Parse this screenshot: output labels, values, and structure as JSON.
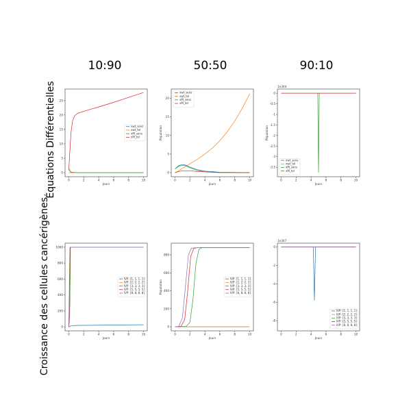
{
  "column_titles": [
    "10:90",
    "50:50",
    "90:10"
  ],
  "row_titles": [
    "Équations Différentielles",
    "Croissance des cellules cancérigènes"
  ],
  "colors": {
    "blue": "#1f77b4",
    "orange": "#ff7f0e",
    "green": "#2ca02c",
    "red": "#d62728",
    "purple": "#9467bd"
  },
  "chart_data": [
    {
      "type": "line",
      "xlabel": "Jours",
      "ylabel": "",
      "xlim": [
        -0.5,
        10.5
      ],
      "ylim": [
        -1.4,
        29
      ],
      "xticks": [
        0,
        2,
        4,
        6,
        8,
        10
      ],
      "yticks": [
        0,
        5,
        10,
        15,
        20,
        25
      ],
      "offset_label": "",
      "legend_pos": "center-right",
      "series": [
        {
          "name": "xwt_sens",
          "color": "blue",
          "points": [
            [
              0,
              1.5
            ],
            [
              0.2,
              0.3
            ],
            [
              0.5,
              0.05
            ],
            [
              1,
              0
            ],
            [
              10,
              0
            ]
          ]
        },
        {
          "name": "xwt_tol",
          "color": "orange",
          "points": [
            [
              0,
              0
            ],
            [
              10,
              0
            ]
          ]
        },
        {
          "name": "xM_sens",
          "color": "green",
          "points": [
            [
              0,
              1
            ],
            [
              0.3,
              0.2
            ],
            [
              1,
              0
            ],
            [
              10,
              0
            ]
          ]
        },
        {
          "name": "xM_tol",
          "color": "red",
          "points": [
            [
              0,
              1
            ],
            [
              0.15,
              8
            ],
            [
              0.3,
              14
            ],
            [
              0.5,
              18
            ],
            [
              0.8,
              19.8
            ],
            [
              1.2,
              20.6
            ],
            [
              2,
              21.3
            ],
            [
              4,
              22.8
            ],
            [
              6,
              24.4
            ],
            [
              8,
              26.1
            ],
            [
              10,
              27.8
            ]
          ]
        }
      ]
    },
    {
      "type": "line",
      "xlabel": "Jours",
      "ylabel": "Population",
      "xlim": [
        -0.5,
        10.5
      ],
      "ylim": [
        -1.1,
        22.5
      ],
      "xticks": [
        0,
        2,
        4,
        6,
        8,
        10
      ],
      "yticks": [
        0,
        5,
        10,
        15,
        20
      ],
      "offset_label": "",
      "legend_pos": "top-left",
      "series": [
        {
          "name": "xwt_sens",
          "color": "blue",
          "points": [
            [
              0,
              1
            ],
            [
              0.5,
              1.9
            ],
            [
              1,
              2.2
            ],
            [
              1.5,
              2.0
            ],
            [
              2,
              1.5
            ],
            [
              3,
              0.8
            ],
            [
              4,
              0.4
            ],
            [
              6,
              0.1
            ],
            [
              10,
              0
            ]
          ]
        },
        {
          "name": "xwt_tol",
          "color": "orange",
          "points": [
            [
              0,
              0
            ],
            [
              0.5,
              0.5
            ],
            [
              1,
              1.2
            ],
            [
              2,
              2.4
            ],
            [
              3,
              3.6
            ],
            [
              4,
              5.0
            ],
            [
              5,
              6.6
            ],
            [
              6,
              8.6
            ],
            [
              7,
              11.0
            ],
            [
              8,
              13.9
            ],
            [
              9,
              17.3
            ],
            [
              10,
              21.2
            ]
          ]
        },
        {
          "name": "xM_sens",
          "color": "green",
          "points": [
            [
              0,
              1
            ],
            [
              0.5,
              1.7
            ],
            [
              1,
              2.0
            ],
            [
              1.5,
              1.8
            ],
            [
              2,
              1.3
            ],
            [
              3,
              0.6
            ],
            [
              4,
              0.2
            ],
            [
              6,
              0
            ],
            [
              10,
              0
            ]
          ]
        },
        {
          "name": "xM_tol",
          "color": "red",
          "points": [
            [
              0,
              0
            ],
            [
              0.5,
              0.3
            ],
            [
              1,
              0.5
            ],
            [
              2,
              0.5
            ],
            [
              3,
              0.3
            ],
            [
              4,
              0.2
            ],
            [
              6,
              0.05
            ],
            [
              10,
              0
            ]
          ]
        }
      ]
    },
    {
      "type": "line",
      "xlabel": "Jours",
      "ylabel": "Population",
      "xlim": [
        -0.5,
        10.5
      ],
      "ylim": [
        -3.95,
        0.2
      ],
      "xticks": [
        0,
        2,
        4,
        6,
        8,
        10
      ],
      "yticks": [
        0.0,
        -0.5,
        -1.0,
        -1.5,
        -2.0,
        -2.5,
        -3.0,
        -3.5
      ],
      "offset_label": "1e304",
      "legend_pos": "bottom-left",
      "series": [
        {
          "name": "xwt_sens",
          "color": "blue",
          "points": [
            [
              0,
              0
            ],
            [
              10,
              0
            ]
          ]
        },
        {
          "name": "xwt_tol",
          "color": "orange",
          "points": [
            [
              0,
              0
            ],
            [
              10,
              0
            ]
          ]
        },
        {
          "name": "xM_sens",
          "color": "green",
          "points": [
            [
              0,
              0
            ],
            [
              4.9,
              0
            ],
            [
              5.0,
              -3.75
            ],
            [
              5.1,
              0
            ],
            [
              10,
              0
            ]
          ]
        },
        {
          "name": "xM_tol",
          "color": "red",
          "points": [
            [
              0,
              0
            ],
            [
              10,
              0
            ]
          ]
        }
      ]
    },
    {
      "type": "line",
      "xlabel": "Jours",
      "ylabel": "",
      "xlim": [
        -0.5,
        10.5
      ],
      "ylim": [
        -50,
        1050
      ],
      "xticks": [
        0,
        2,
        4,
        6,
        8,
        10
      ],
      "yticks": [
        0,
        200,
        400,
        600,
        800,
        1000
      ],
      "offset_label": "",
      "legend_pos": "center-right",
      "series": [
        {
          "name": "IVP: [1, 1, 1, 1]",
          "color": "blue",
          "points": [
            [
              0,
              0
            ],
            [
              0.2,
              10
            ],
            [
              0.5,
              15
            ],
            [
              1,
              18
            ],
            [
              3,
              20
            ],
            [
              6,
              23
            ],
            [
              10,
              26
            ]
          ]
        },
        {
          "name": "IVP: [2, 2, 2, 2]",
          "color": "orange",
          "points": [
            [
              0,
              0
            ],
            [
              0.12,
              100
            ],
            [
              0.2,
              1000
            ],
            [
              10,
              1000
            ]
          ]
        },
        {
          "name": "IVP: [3, 3, 3, 3]",
          "color": "green",
          "points": [
            [
              0,
              0
            ],
            [
              0.14,
              300
            ],
            [
              0.22,
              1000
            ],
            [
              10,
              1000
            ]
          ]
        },
        {
          "name": "IVP: [5, 5, 5, 5]",
          "color": "red",
          "points": [
            [
              0,
              0
            ],
            [
              0.1,
              500
            ],
            [
              0.18,
              1000
            ],
            [
              10,
              1000
            ]
          ]
        },
        {
          "name": "IVP: [8, 8, 8, 8]",
          "color": "purple",
          "points": [
            [
              0,
              0
            ],
            [
              0.08,
              600
            ],
            [
              0.15,
              1000
            ],
            [
              10,
              1000
            ]
          ]
        }
      ]
    },
    {
      "type": "line",
      "xlabel": "Jours",
      "ylabel": "Population",
      "xlim": [
        -0.5,
        10.5
      ],
      "ylim": [
        -45,
        930
      ],
      "xticks": [
        0,
        2,
        4,
        6,
        8,
        10
      ],
      "yticks": [
        0,
        200,
        400,
        600,
        800
      ],
      "offset_label": "",
      "legend_pos": "center-right",
      "series": [
        {
          "name": "IVP: [1, 1, 1, 1]",
          "color": "blue",
          "points": [
            [
              0,
              0
            ],
            [
              10,
              0
            ]
          ]
        },
        {
          "name": "IVP: [2, 2, 2, 2]",
          "color": "orange",
          "points": [
            [
              0,
              0
            ],
            [
              10,
              0
            ]
          ]
        },
        {
          "name": "IVP: [3, 3, 3, 3]",
          "color": "green",
          "points": [
            [
              0,
              0
            ],
            [
              1.5,
              5
            ],
            [
              2.0,
              50
            ],
            [
              2.4,
              300
            ],
            [
              2.8,
              700
            ],
            [
              3.2,
              860
            ],
            [
              3.6,
              880
            ],
            [
              10,
              880
            ]
          ]
        },
        {
          "name": "IVP: [5, 5, 5, 5]",
          "color": "red",
          "points": [
            [
              0,
              0
            ],
            [
              0.8,
              5
            ],
            [
              1.3,
              80
            ],
            [
              1.7,
              400
            ],
            [
              2.1,
              780
            ],
            [
              2.5,
              870
            ],
            [
              3,
              880
            ],
            [
              10,
              880
            ]
          ]
        },
        {
          "name": "IVP: [8, 8, 8, 8]",
          "color": "purple",
          "points": [
            [
              0,
              0
            ],
            [
              0.5,
              5
            ],
            [
              1.0,
              100
            ],
            [
              1.4,
              450
            ],
            [
              1.8,
              800
            ],
            [
              2.2,
              875
            ],
            [
              3,
              880
            ],
            [
              10,
              880
            ]
          ]
        }
      ]
    },
    {
      "type": "line",
      "xlabel": "Jours",
      "ylabel": "",
      "xlim": [
        -0.5,
        10.5
      ],
      "ylim": [
        -9.1,
        0.4
      ],
      "xticks": [
        0,
        2,
        4,
        6,
        8,
        10
      ],
      "yticks": [
        0,
        -2,
        -4,
        -6,
        -8
      ],
      "offset_label": "1e307",
      "legend_pos": "bottom-right",
      "series": [
        {
          "name": "IVP: [1, 1, 1, 1]",
          "color": "blue",
          "points": [
            [
              0,
              0
            ],
            [
              4.3,
              0
            ],
            [
              4.45,
              -5.8
            ],
            [
              4.6,
              0
            ],
            [
              10,
              0
            ]
          ]
        },
        {
          "name": "IVP: [2, 2, 2, 2]",
          "color": "orange",
          "points": [
            [
              0,
              0
            ],
            [
              10,
              0
            ]
          ]
        },
        {
          "name": "IVP: [3, 3, 3, 3]",
          "color": "green",
          "points": [
            [
              0,
              0
            ],
            [
              10,
              0
            ]
          ]
        },
        {
          "name": "IVP: [5, 5, 5, 5]",
          "color": "red",
          "points": [
            [
              0,
              0
            ],
            [
              10,
              0
            ]
          ]
        },
        {
          "name": "IVP: [8, 8, 8, 8]",
          "color": "purple",
          "points": [
            [
              0,
              0
            ],
            [
              10,
              0
            ]
          ]
        }
      ]
    }
  ]
}
